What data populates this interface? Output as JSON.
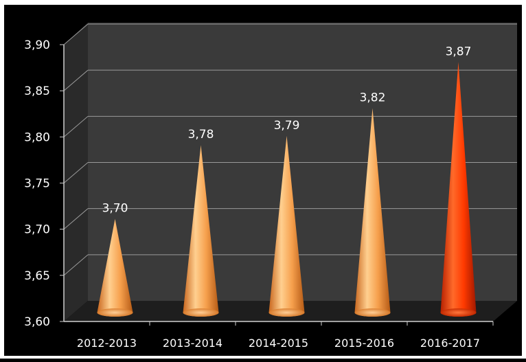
{
  "chart_data": {
    "type": "bar",
    "bar_shape": "cone",
    "style": "3d",
    "categories": [
      "2012-2013",
      "2013-2014",
      "2014-2015",
      "2015-2016",
      "2016-2017"
    ],
    "values": [
      3.7,
      3.78,
      3.79,
      3.82,
      3.87
    ],
    "data_labels": [
      "3,70",
      "3,78",
      "3,79",
      "3,82",
      "3,87"
    ],
    "ylim": [
      3.6,
      3.9
    ],
    "yticks": [
      3.6,
      3.65,
      3.7,
      3.75,
      3.8,
      3.85,
      3.9
    ],
    "ytick_labels": [
      "3,60",
      "3,65",
      "3,70",
      "3,75",
      "3,80",
      "3,85",
      "3,90"
    ],
    "grid": true,
    "title": "",
    "xlabel": "",
    "ylabel": "",
    "colors": {
      "background": "#000000",
      "wall": "#3a3a3a",
      "floor": "#1e1e1e",
      "grid": "#9a9a9a",
      "text": "#ffffff",
      "bar": "#f6a04d",
      "highlight_bar": "#ff3a00"
    },
    "highlight_index": 4
  }
}
